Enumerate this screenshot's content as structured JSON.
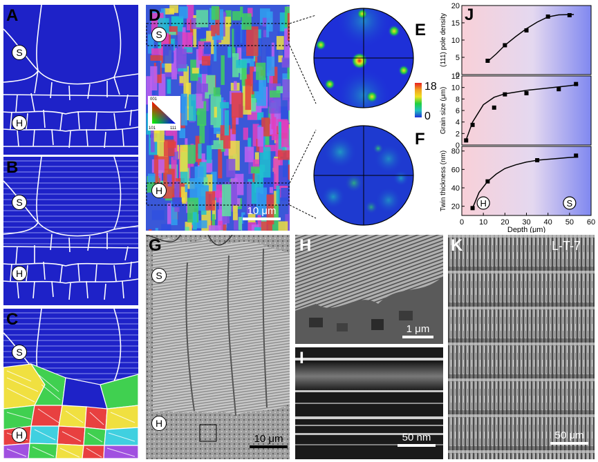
{
  "panels": {
    "A": {
      "label": "A",
      "marker_top": "S",
      "marker_bottom": "H"
    },
    "B": {
      "label": "B",
      "marker_top": "S",
      "marker_bottom": "H"
    },
    "C": {
      "label": "C",
      "marker_top": "S",
      "marker_bottom": "H"
    },
    "D": {
      "label": "D",
      "marker_top": "S",
      "marker_bottom": "H",
      "scale": "10 μm",
      "triangle": {
        "top": "001",
        "left": "101",
        "right": "111"
      }
    },
    "E": {
      "label": "E",
      "colorbar_max": "18",
      "colorbar_min": "0"
    },
    "F": {
      "label": "F"
    },
    "G": {
      "label": "G",
      "marker_top": "S",
      "marker_bottom": "H",
      "scale": "10 μm"
    },
    "H": {
      "label": "H",
      "scale": "1 μm"
    },
    "I": {
      "label": "I",
      "scale": "50 nm"
    },
    "K": {
      "label": "K",
      "sample": "L-T-7",
      "scale": "50 μm"
    },
    "J": {
      "label": "J",
      "marker_h": "H",
      "marker_s": "S"
    }
  },
  "chart_data": [
    {
      "type": "scatter",
      "ylabel": "(111) pole density",
      "ylim": [
        0,
        20
      ],
      "yticks": [
        0,
        5,
        10,
        15,
        20
      ],
      "x": [
        12,
        20,
        30,
        40,
        50
      ],
      "y": [
        4.0,
        8.5,
        12.8,
        16.8,
        17.2
      ],
      "fit_x": [
        12,
        16,
        20,
        25,
        30,
        35,
        40,
        45,
        52
      ],
      "fit_y": [
        3.8,
        6.0,
        8.5,
        11.0,
        13.3,
        15.2,
        16.7,
        17.3,
        17.4
      ]
    },
    {
      "type": "scatter",
      "ylabel": "Grain size (μm)",
      "ylim": [
        0,
        12
      ],
      "yticks": [
        0,
        2,
        4,
        6,
        8,
        10,
        12
      ],
      "x": [
        2,
        5,
        15,
        20,
        30,
        45,
        53
      ],
      "y": [
        0.8,
        3.5,
        6.5,
        8.8,
        9.0,
        9.7,
        10.6
      ],
      "fit_x": [
        2,
        5,
        10,
        15,
        20,
        30,
        40,
        50,
        54
      ],
      "fit_y": [
        0.9,
        4.0,
        7.0,
        8.3,
        8.9,
        9.5,
        9.9,
        10.3,
        10.5
      ]
    },
    {
      "type": "scatter",
      "ylabel": "Twin thickness (nm)",
      "xlabel": "Depth (μm)",
      "ylim": [
        10,
        85
      ],
      "yticks": [
        20,
        40,
        60,
        80
      ],
      "xlim": [
        0,
        60
      ],
      "xticks": [
        0,
        10,
        20,
        30,
        40,
        50,
        60
      ],
      "x": [
        5,
        12,
        35,
        53
      ],
      "y": [
        18,
        47,
        70,
        75
      ],
      "fit_x": [
        5,
        8,
        12,
        16,
        20,
        25,
        30,
        35,
        40,
        45,
        50,
        54
      ],
      "fit_y": [
        18,
        35,
        47,
        55,
        61,
        65,
        68,
        70,
        71,
        72,
        73,
        73.5
      ]
    }
  ]
}
